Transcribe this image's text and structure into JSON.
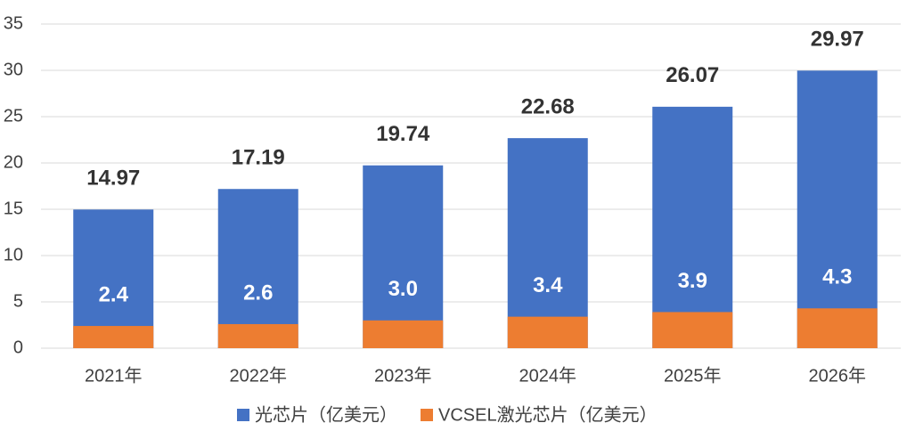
{
  "chart_data": {
    "type": "bar",
    "categories": [
      "2021年",
      "2022年",
      "2023年",
      "2024年",
      "2025年",
      "2026年"
    ],
    "series": [
      {
        "name": "光芯片（亿美元）",
        "color": "#4472c4",
        "values": [
          14.97,
          17.19,
          19.74,
          22.68,
          26.07,
          29.97
        ]
      },
      {
        "name": "VCSEL激光芯片（亿美元）",
        "color": "#ed7d31",
        "values": [
          2.4,
          2.6,
          3.0,
          3.4,
          3.9,
          4.3
        ],
        "value_labels": [
          "2.4",
          "2.6",
          "3.0",
          "3.4",
          "3.9",
          "4.3"
        ]
      }
    ],
    "ylim": [
      0,
      35
    ],
    "yticks": [
      0,
      5,
      10,
      15,
      20,
      25,
      30,
      35
    ],
    "grid": true,
    "legend": "bottom"
  }
}
